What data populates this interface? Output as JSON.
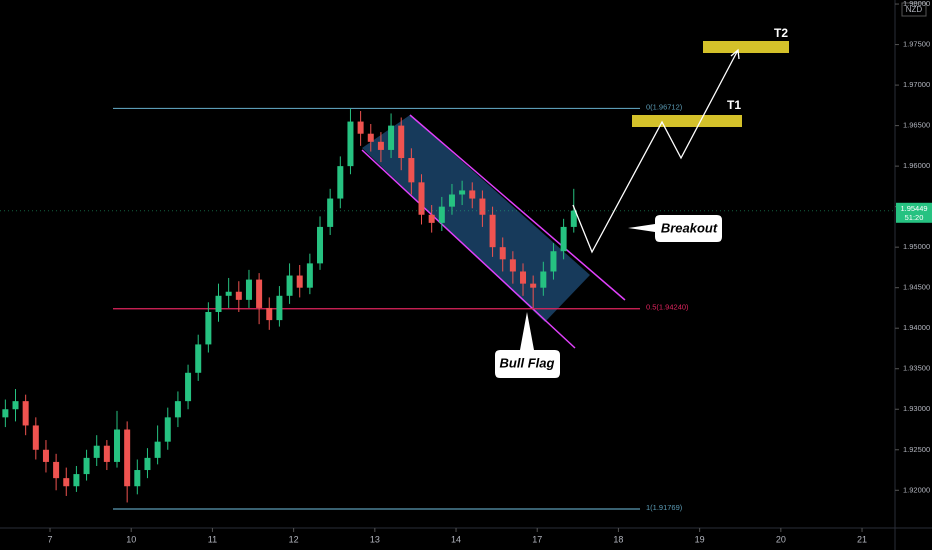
{
  "chart_data": {
    "type": "candlestick",
    "currency": "NZD",
    "colors": {
      "up": "#26c281",
      "down": "#ef5350"
    },
    "xlim": [
      -0.616,
      10.406
    ],
    "ylim": [
      1.9151,
      1.9805
    ],
    "xticks": [
      {
        "value": 0,
        "label": "7"
      },
      {
        "value": 1,
        "label": "10"
      },
      {
        "value": 2,
        "label": "11"
      },
      {
        "value": 3,
        "label": "12"
      },
      {
        "value": 4,
        "label": "13"
      },
      {
        "value": 5,
        "label": "14"
      },
      {
        "value": 6,
        "label": "17"
      },
      {
        "value": 7,
        "label": "18"
      },
      {
        "value": 8,
        "label": "19"
      },
      {
        "value": 9,
        "label": "20"
      },
      {
        "value": 10,
        "label": "21"
      }
    ],
    "yticks": [
      {
        "value": 1.92,
        "label": "1.92000"
      },
      {
        "value": 1.925,
        "label": "1.92500"
      },
      {
        "value": 1.93,
        "label": "1.93000"
      },
      {
        "value": 1.935,
        "label": "1.93500"
      },
      {
        "value": 1.94,
        "label": "1.94000"
      },
      {
        "value": 1.945,
        "label": "1.94500"
      },
      {
        "value": 1.95,
        "label": "1.95000"
      },
      {
        "value": 1.955,
        "label": "1.95500"
      },
      {
        "value": 1.96,
        "label": "1.96000"
      },
      {
        "value": 1.965,
        "label": "1.96500"
      },
      {
        "value": 1.97,
        "label": "1.97000"
      },
      {
        "value": 1.975,
        "label": "1.97500"
      },
      {
        "value": 1.98,
        "label": "1.98000"
      }
    ],
    "x": [
      -0.55,
      -0.425,
      -0.3,
      -0.175,
      -0.05,
      0.075,
      0.2,
      0.325,
      0.45,
      0.575,
      0.7,
      0.825,
      0.95,
      1.075,
      1.2,
      1.325,
      1.45,
      1.575,
      1.7,
      1.825,
      1.95,
      2.075,
      2.2,
      2.325,
      2.45,
      2.575,
      2.7,
      2.825,
      2.95,
      3.075,
      3.2,
      3.325,
      3.45,
      3.575,
      3.7,
      3.825,
      3.95,
      4.075,
      4.2,
      4.325,
      4.45,
      4.575,
      4.7,
      4.825,
      4.95,
      5.075,
      5.2,
      5.325,
      5.45,
      5.575,
      5.7,
      5.825,
      5.95,
      6.075,
      6.2,
      6.325,
      6.45
    ],
    "open": [
      1.929,
      1.93,
      1.931,
      1.928,
      1.925,
      1.9235,
      1.9215,
      1.9205,
      1.922,
      1.924,
      1.9255,
      1.9235,
      1.9275,
      1.9205,
      1.9225,
      1.924,
      1.926,
      1.929,
      1.931,
      1.9345,
      1.938,
      1.942,
      1.944,
      1.9445,
      1.9435,
      1.946,
      1.9425,
      1.941,
      1.944,
      1.9465,
      1.945,
      1.948,
      1.9525,
      1.956,
      1.96,
      1.9655,
      1.964,
      1.963,
      1.962,
      1.965,
      1.961,
      1.958,
      1.954,
      1.953,
      1.955,
      1.9565,
      1.957,
      1.956,
      1.954,
      1.95,
      1.9485,
      1.947,
      1.9455,
      1.945,
      1.947,
      1.9495,
      1.9525
    ],
    "high": [
      1.9312,
      1.9325,
      1.9318,
      1.929,
      1.9262,
      1.9245,
      1.9228,
      1.923,
      1.925,
      1.9268,
      1.9262,
      1.9298,
      1.9285,
      1.9238,
      1.9252,
      1.928,
      1.9302,
      1.9322,
      1.9355,
      1.9392,
      1.9432,
      1.9455,
      1.9462,
      1.9458,
      1.9472,
      1.9468,
      1.9438,
      1.9452,
      1.948,
      1.9478,
      1.9492,
      1.9538,
      1.9572,
      1.9612,
      1.9671,
      1.9668,
      1.9652,
      1.9642,
      1.9665,
      1.966,
      1.9622,
      1.959,
      1.9552,
      1.9562,
      1.9578,
      1.9582,
      1.958,
      1.957,
      1.955,
      1.9512,
      1.9495,
      1.948,
      1.9465,
      1.9482,
      1.9505,
      1.9535,
      1.9572
    ],
    "low": [
      1.9278,
      1.9285,
      1.9268,
      1.9238,
      1.9222,
      1.92,
      1.9193,
      1.9198,
      1.9212,
      1.923,
      1.9225,
      1.9228,
      1.9185,
      1.9195,
      1.9215,
      1.9232,
      1.925,
      1.9278,
      1.93,
      1.9335,
      1.937,
      1.9408,
      1.9425,
      1.942,
      1.9425,
      1.9405,
      1.9398,
      1.9402,
      1.943,
      1.9438,
      1.9442,
      1.9472,
      1.9515,
      1.9548,
      1.959,
      1.9625,
      1.9618,
      1.9605,
      1.961,
      1.9595,
      1.9565,
      1.9528,
      1.9518,
      1.952,
      1.954,
      1.9552,
      1.9548,
      1.9525,
      1.9488,
      1.947,
      1.9455,
      1.944,
      1.9425,
      1.944,
      1.946,
      1.9485,
      1.9518
    ],
    "close": [
      1.93,
      1.931,
      1.928,
      1.925,
      1.9235,
      1.9215,
      1.9205,
      1.922,
      1.924,
      1.9255,
      1.9235,
      1.9275,
      1.9205,
      1.9225,
      1.924,
      1.926,
      1.929,
      1.931,
      1.9345,
      1.938,
      1.942,
      1.944,
      1.9445,
      1.9435,
      1.946,
      1.9425,
      1.941,
      1.944,
      1.9465,
      1.945,
      1.948,
      1.9525,
      1.956,
      1.96,
      1.9655,
      1.964,
      1.963,
      1.962,
      1.965,
      1.961,
      1.958,
      1.954,
      1.953,
      1.955,
      1.9565,
      1.957,
      1.956,
      1.954,
      1.95,
      1.9485,
      1.947,
      1.9455,
      1.945,
      1.947,
      1.9495,
      1.9525,
      1.9545
    ],
    "fib_levels": [
      {
        "value": 1.96712,
        "label": "0(1.96712)",
        "color": "#5b9bb5"
      },
      {
        "value": 1.9424,
        "label": "0.5(1.94240)",
        "color": "#e0245e"
      },
      {
        "value": 1.91769,
        "label": "1(1.91769)",
        "color": "#5b9bb5"
      }
    ],
    "current_price": 1.95449,
    "countdown": "51:20",
    "annotations": {
      "t1": "T1",
      "t2": "T2",
      "breakout": "Breakout",
      "bull_flag": "Bull Flag"
    }
  }
}
